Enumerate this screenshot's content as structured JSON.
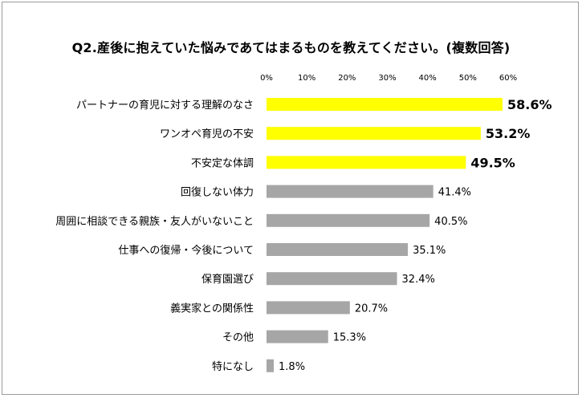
{
  "chart_data": {
    "type": "bar",
    "orientation": "horizontal",
    "title": "Q2.産後に抱えていた悩みであてはまるものを教えてください。(複数回答)",
    "xlim": [
      0,
      60
    ],
    "x_ticks": [
      "0%",
      "10%",
      "20%",
      "30%",
      "40%",
      "50%",
      "60%"
    ],
    "categories": [
      "パートナーの育児に対する理解のなさ",
      "ワンオペ育児の不安",
      "不安定な体調",
      "回復しない体力",
      "周囲に相談できる親族・友人がいないこと",
      "仕事への復帰・今後について",
      "保育園選び",
      "義実家との関係性",
      "その他",
      "特になし"
    ],
    "values": [
      58.6,
      53.2,
      49.5,
      41.4,
      40.5,
      35.1,
      32.4,
      20.7,
      15.3,
      1.8
    ],
    "data_labels": [
      "58.6%",
      "53.2%",
      "49.5%",
      "41.4%",
      "40.5%",
      "35.1%",
      "32.4%",
      "20.7%",
      "15.3%",
      "1.8%"
    ],
    "highlight_top_n": 3,
    "colors": {
      "highlight": "#ffff00",
      "default": "#a6a6a6"
    },
    "grid": false,
    "legend": "none"
  }
}
